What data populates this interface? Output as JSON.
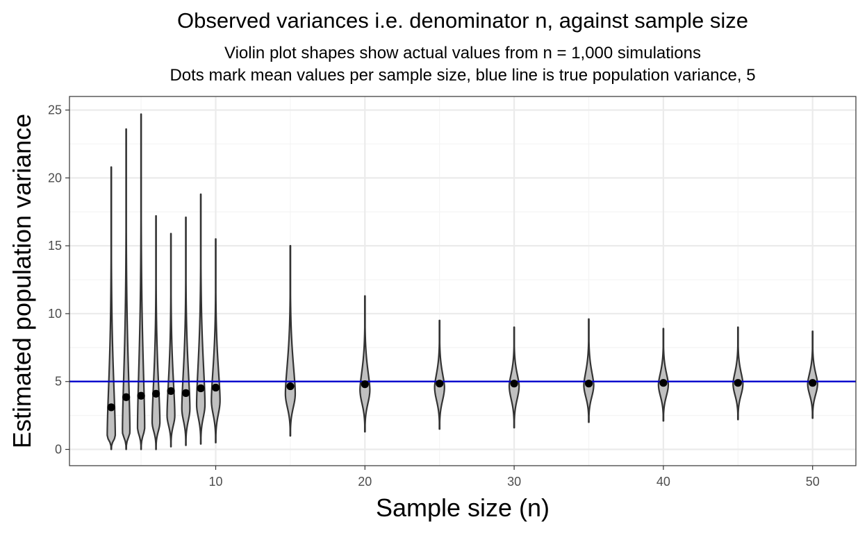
{
  "chart_data": {
    "type": "violin",
    "title": "Observed variances i.e. denominator n, against sample size",
    "subtitle_lines": [
      "Violin plot shapes show actual values from n = 1,000 simulations",
      "Dots mark mean values per sample size, blue line is true population variance, 5"
    ],
    "xlabel": "Sample size (n)",
    "ylabel": "Estimated population variance",
    "xlim": [
      0.2,
      52.9
    ],
    "ylim": [
      -1.2,
      26.0
    ],
    "x_ticks": [
      10,
      20,
      30,
      40,
      50
    ],
    "x_tick_labels": [
      "10",
      "20",
      "30",
      "40",
      "50"
    ],
    "y_ticks": [
      0,
      5,
      10,
      15,
      20,
      25
    ],
    "y_tick_labels": [
      "0",
      "5",
      "10",
      "15",
      "20",
      "25"
    ],
    "reference_line": {
      "value": 5,
      "color": "#0000cc",
      "label": "true population variance"
    },
    "colors": {
      "violin_fill": "#c0c0c0",
      "violin_stroke": "#333333",
      "mean_dot": "#000000",
      "grid_major": "#ebebeb",
      "grid_minor": "#f4f4f4",
      "panel_border": "#333333"
    },
    "series": [
      {
        "n": 3,
        "min": 0.0,
        "max": 20.8,
        "mean": 3.1,
        "mode": 1.0,
        "max_half_width": 0.27
      },
      {
        "n": 4,
        "min": 0.0,
        "max": 23.6,
        "mean": 3.85,
        "mode": 1.3,
        "max_half_width": 0.25
      },
      {
        "n": 5,
        "min": 0.0,
        "max": 24.7,
        "mean": 3.95,
        "mode": 1.6,
        "max_half_width": 0.24
      },
      {
        "n": 6,
        "min": 0.0,
        "max": 17.2,
        "mean": 4.1,
        "mode": 2.0,
        "max_half_width": 0.26
      },
      {
        "n": 7,
        "min": 0.2,
        "max": 15.9,
        "mean": 4.3,
        "mode": 2.5,
        "max_half_width": 0.26
      },
      {
        "n": 8,
        "min": 0.3,
        "max": 17.1,
        "mean": 4.15,
        "mode": 3.0,
        "max_half_width": 0.27
      },
      {
        "n": 9,
        "min": 0.4,
        "max": 18.8,
        "mean": 4.5,
        "mode": 3.3,
        "max_half_width": 0.28
      },
      {
        "n": 10,
        "min": 0.5,
        "max": 15.5,
        "mean": 4.55,
        "mode": 3.6,
        "max_half_width": 0.29
      },
      {
        "n": 15,
        "min": 1.0,
        "max": 15.0,
        "mean": 4.65,
        "mode": 4.1,
        "max_half_width": 0.33
      },
      {
        "n": 20,
        "min": 1.3,
        "max": 11.3,
        "mean": 4.8,
        "mode": 4.4,
        "max_half_width": 0.33
      },
      {
        "n": 25,
        "min": 1.5,
        "max": 9.5,
        "mean": 4.85,
        "mode": 4.6,
        "max_half_width": 0.33
      },
      {
        "n": 30,
        "min": 1.6,
        "max": 9.0,
        "mean": 4.85,
        "mode": 4.7,
        "max_half_width": 0.33
      },
      {
        "n": 35,
        "min": 2.0,
        "max": 9.6,
        "mean": 4.85,
        "mode": 4.75,
        "max_half_width": 0.33
      },
      {
        "n": 40,
        "min": 2.1,
        "max": 8.9,
        "mean": 4.9,
        "mode": 4.8,
        "max_half_width": 0.33
      },
      {
        "n": 45,
        "min": 2.2,
        "max": 9.0,
        "mean": 4.9,
        "mode": 4.85,
        "max_half_width": 0.33
      },
      {
        "n": 50,
        "min": 2.3,
        "max": 8.7,
        "mean": 4.9,
        "mode": 4.85,
        "max_half_width": 0.33
      }
    ]
  }
}
